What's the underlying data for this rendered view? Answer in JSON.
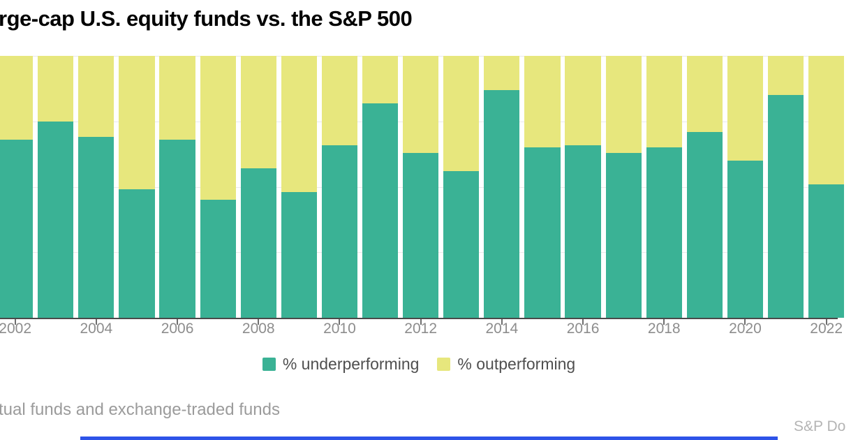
{
  "title": "rge-cap U.S. equity funds vs. the S&P 500",
  "footnote": "tual funds and exchange-traded funds",
  "attribution": "S&P Do",
  "colors": {
    "underperforming": "#3ab295",
    "outperforming": "#e7e77d",
    "gridline": "#e9e9e9",
    "axis_line": "#4a4a4a",
    "tick": "#6e6e6e",
    "year_label": "#8d8d8d",
    "title_text": "#000000",
    "legend_text": "#4f4f4f",
    "footnote_text": "#9b9b9b",
    "attribution_text": "#b4b4b4",
    "bottom_bar": "#2d53e8"
  },
  "chart_data": {
    "type": "bar",
    "stacked": true,
    "stack_total": 100,
    "title": "rge-cap U.S. equity funds vs. the S&P 500",
    "xlabel": "",
    "ylabel": "",
    "ylim": [
      0,
      100
    ],
    "gridlines_pct": [
      25,
      50,
      75,
      100
    ],
    "legend_position": "bottom",
    "categories": [
      2002,
      2003,
      2004,
      2005,
      2006,
      2007,
      2008,
      2009,
      2010,
      2011,
      2012,
      2013,
      2014,
      2015,
      2016,
      2017,
      2018,
      2019,
      2020,
      2021,
      2022
    ],
    "series": [
      {
        "name": "% underperforming",
        "values": [
          68,
          75,
          69,
          49,
          68,
          45,
          57,
          48,
          66,
          82,
          63,
          56,
          87,
          65,
          66,
          63,
          65,
          71,
          60,
          85,
          51
        ]
      },
      {
        "name": "% outperforming",
        "values": [
          32,
          25,
          31,
          51,
          32,
          55,
          43,
          52,
          34,
          18,
          37,
          44,
          13,
          35,
          34,
          37,
          35,
          29,
          40,
          15,
          49
        ]
      }
    ],
    "x_tick_labels": [
      "2002",
      "2004",
      "2006",
      "2008",
      "2010",
      "2012",
      "2014",
      "2016",
      "2018",
      "2020",
      "2022"
    ]
  }
}
